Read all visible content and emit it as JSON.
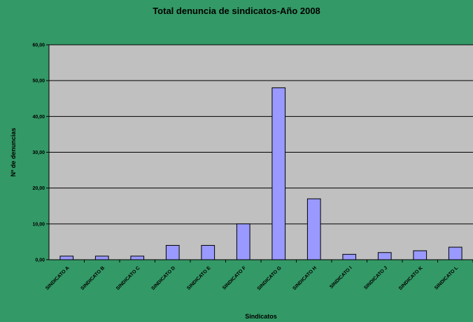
{
  "chart_data": {
    "type": "bar",
    "title": "Total denuncia de sindicatos-Año 2008",
    "xlabel": "Sindicatos",
    "ylabel": "Nº de denuncias",
    "ylim": [
      0,
      60
    ],
    "ytick_values": [
      0,
      10,
      20,
      30,
      40,
      50,
      60
    ],
    "ytick_labels": [
      "0,00",
      "10,00",
      "20,00",
      "30,00",
      "40,00",
      "50,00",
      "60,00"
    ],
    "categories": [
      "SINDICATO A",
      "SINDICATO B",
      "SINDICATO C",
      "SINDICATO D",
      "SINDICATO E",
      "SINDICATO F",
      "SINDICATO G",
      "SINDICATO H",
      "SINDICATO I",
      "SINDICATO J",
      "SINDICATO K",
      "SINDICATO L"
    ],
    "values": [
      1,
      1,
      1,
      4,
      4,
      10,
      48,
      17,
      1.5,
      2,
      2.5,
      3.5
    ],
    "grid": true,
    "legend": "none",
    "colors": {
      "background": "#339966",
      "plot_area": "#c0c0c0",
      "bar_fill": "#9999ff",
      "bar_stroke": "#000000"
    }
  }
}
